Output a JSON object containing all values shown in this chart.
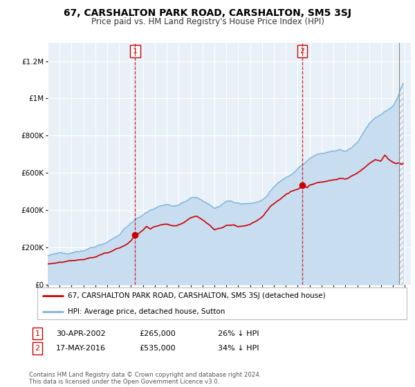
{
  "title": "67, CARSHALTON PARK ROAD, CARSHALTON, SM5 3SJ",
  "subtitle": "Price paid vs. HM Land Registry's House Price Index (HPI)",
  "xlim_start": 1995.0,
  "xlim_end": 2025.5,
  "ylim": [
    0,
    1300000
  ],
  "background_color": "#e8f0f8",
  "grid_color": "#ffffff",
  "hpi_color": "#7ab3d9",
  "hpi_fill_color": "#c8ddf0",
  "price_color": "#cc0000",
  "marker1_x": 2002.33,
  "marker1_y": 265000,
  "marker2_x": 2016.38,
  "marker2_y": 535000,
  "legend_label1": "67, CARSHALTON PARK ROAD, CARSHALTON, SM5 3SJ (detached house)",
  "legend_label2": "HPI: Average price, detached house, Sutton",
  "annotation1_label": "1",
  "annotation1_date": "30-APR-2002",
  "annotation1_price": "£265,000",
  "annotation1_hpi": "26% ↓ HPI",
  "annotation2_label": "2",
  "annotation2_date": "17-MAY-2016",
  "annotation2_price": "£535,000",
  "annotation2_hpi": "34% ↓ HPI",
  "footer": "Contains HM Land Registry data © Crown copyright and database right 2024.\nThis data is licensed under the Open Government Licence v3.0.",
  "yticks": [
    0,
    200000,
    400000,
    600000,
    800000,
    1000000,
    1200000
  ],
  "ytick_labels": [
    "£0",
    "£200K",
    "£400K",
    "£600K",
    "£800K",
    "£1M",
    "£1.2M"
  ],
  "xticks": [
    1995,
    1996,
    1997,
    1998,
    1999,
    2000,
    2001,
    2002,
    2003,
    2004,
    2005,
    2006,
    2007,
    2008,
    2009,
    2010,
    2011,
    2012,
    2013,
    2014,
    2015,
    2016,
    2017,
    2018,
    2019,
    2020,
    2021,
    2022,
    2023,
    2024,
    2025
  ],
  "hpi_keypoints": [
    [
      1995.0,
      155000
    ],
    [
      1995.5,
      158000
    ],
    [
      1996.0,
      162000
    ],
    [
      1996.5,
      165000
    ],
    [
      1997.0,
      170000
    ],
    [
      1997.5,
      178000
    ],
    [
      1998.0,
      185000
    ],
    [
      1998.5,
      192000
    ],
    [
      1999.0,
      200000
    ],
    [
      1999.5,
      215000
    ],
    [
      2000.0,
      230000
    ],
    [
      2000.5,
      248000
    ],
    [
      2001.0,
      268000
    ],
    [
      2001.5,
      300000
    ],
    [
      2002.0,
      330000
    ],
    [
      2002.5,
      355000
    ],
    [
      2003.0,
      375000
    ],
    [
      2003.5,
      395000
    ],
    [
      2004.0,
      415000
    ],
    [
      2004.5,
      430000
    ],
    [
      2005.0,
      440000
    ],
    [
      2005.5,
      435000
    ],
    [
      2006.0,
      445000
    ],
    [
      2006.5,
      460000
    ],
    [
      2007.0,
      475000
    ],
    [
      2007.5,
      480000
    ],
    [
      2008.0,
      460000
    ],
    [
      2008.5,
      440000
    ],
    [
      2009.0,
      420000
    ],
    [
      2009.5,
      430000
    ],
    [
      2010.0,
      450000
    ],
    [
      2010.5,
      445000
    ],
    [
      2011.0,
      440000
    ],
    [
      2011.5,
      435000
    ],
    [
      2012.0,
      440000
    ],
    [
      2012.5,
      448000
    ],
    [
      2013.0,
      460000
    ],
    [
      2013.5,
      490000
    ],
    [
      2014.0,
      530000
    ],
    [
      2014.5,
      560000
    ],
    [
      2015.0,
      580000
    ],
    [
      2015.5,
      600000
    ],
    [
      2016.0,
      625000
    ],
    [
      2016.5,
      650000
    ],
    [
      2017.0,
      680000
    ],
    [
      2017.5,
      700000
    ],
    [
      2018.0,
      710000
    ],
    [
      2018.5,
      715000
    ],
    [
      2019.0,
      720000
    ],
    [
      2019.5,
      730000
    ],
    [
      2020.0,
      720000
    ],
    [
      2020.5,
      740000
    ],
    [
      2021.0,
      770000
    ],
    [
      2021.5,
      820000
    ],
    [
      2022.0,
      870000
    ],
    [
      2022.5,
      900000
    ],
    [
      2023.0,
      920000
    ],
    [
      2023.5,
      940000
    ],
    [
      2024.0,
      960000
    ],
    [
      2024.3,
      990000
    ],
    [
      2024.5,
      1020000
    ],
    [
      2024.7,
      1060000
    ],
    [
      2024.85,
      1080000
    ]
  ],
  "price_keypoints": [
    [
      1995.0,
      110000
    ],
    [
      1995.5,
      112000
    ],
    [
      1996.0,
      115000
    ],
    [
      1996.5,
      118000
    ],
    [
      1997.0,
      122000
    ],
    [
      1997.5,
      128000
    ],
    [
      1998.0,
      132000
    ],
    [
      1998.5,
      138000
    ],
    [
      1999.0,
      145000
    ],
    [
      1999.5,
      155000
    ],
    [
      2000.0,
      165000
    ],
    [
      2000.5,
      178000
    ],
    [
      2001.0,
      192000
    ],
    [
      2001.5,
      210000
    ],
    [
      2002.0,
      235000
    ],
    [
      2002.33,
      265000
    ],
    [
      2002.5,
      268000
    ],
    [
      2003.0,
      290000
    ],
    [
      2003.3,
      310000
    ],
    [
      2003.6,
      295000
    ],
    [
      2004.0,
      310000
    ],
    [
      2004.5,
      325000
    ],
    [
      2005.0,
      330000
    ],
    [
      2005.5,
      320000
    ],
    [
      2006.0,
      325000
    ],
    [
      2006.5,
      340000
    ],
    [
      2007.0,
      360000
    ],
    [
      2007.5,
      365000
    ],
    [
      2008.0,
      350000
    ],
    [
      2008.5,
      330000
    ],
    [
      2009.0,
      305000
    ],
    [
      2009.5,
      315000
    ],
    [
      2010.0,
      330000
    ],
    [
      2010.5,
      335000
    ],
    [
      2011.0,
      330000
    ],
    [
      2011.5,
      335000
    ],
    [
      2012.0,
      340000
    ],
    [
      2012.5,
      355000
    ],
    [
      2013.0,
      375000
    ],
    [
      2013.5,
      410000
    ],
    [
      2014.0,
      440000
    ],
    [
      2014.5,
      465000
    ],
    [
      2015.0,
      490000
    ],
    [
      2015.5,
      510000
    ],
    [
      2016.0,
      520000
    ],
    [
      2016.38,
      535000
    ],
    [
      2016.5,
      540000
    ],
    [
      2016.8,
      530000
    ],
    [
      2017.0,
      545000
    ],
    [
      2017.5,
      555000
    ],
    [
      2018.0,
      560000
    ],
    [
      2018.5,
      565000
    ],
    [
      2019.0,
      570000
    ],
    [
      2019.5,
      580000
    ],
    [
      2020.0,
      575000
    ],
    [
      2020.5,
      590000
    ],
    [
      2021.0,
      610000
    ],
    [
      2021.5,
      630000
    ],
    [
      2022.0,
      660000
    ],
    [
      2022.5,
      680000
    ],
    [
      2023.0,
      670000
    ],
    [
      2023.3,
      700000
    ],
    [
      2023.6,
      680000
    ],
    [
      2024.0,
      660000
    ],
    [
      2024.3,
      650000
    ],
    [
      2024.5,
      655000
    ],
    [
      2024.7,
      648000
    ],
    [
      2024.85,
      650000
    ]
  ]
}
